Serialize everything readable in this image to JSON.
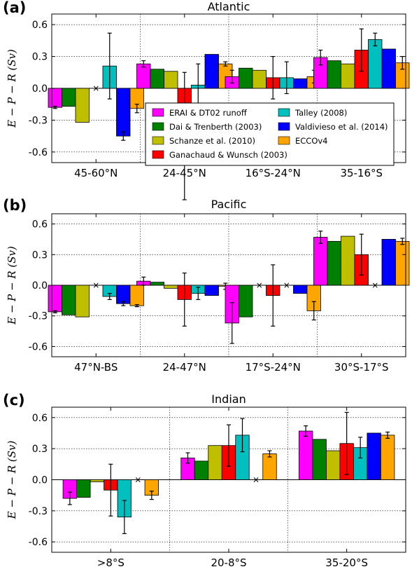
{
  "colors": {
    "ERAI & DT02 runoff": "#ff00ff",
    "Dai & Trenberth (2003)": "#008000",
    "Schanze et al. (2010)": "#bfbf00",
    "Ganachaud & Wunsch (2003)": "#ff0000",
    "Talley (2008)": "#00bfbf",
    "Valdivieso et al. (2014)": "#0000ff",
    "ECCOv4": "#ffa500"
  },
  "legend": {
    "location": "inside panel (a), lower center",
    "columns": [
      [
        "ERAI & DT02 runoff",
        "Dai & Trenberth (2003)",
        "Schanze et al. (2010)",
        "Ganachaud & Wunsch (2003)"
      ],
      [
        "Talley (2008)",
        "Valdivieso et al. (2014)",
        "ECCOv4"
      ]
    ]
  },
  "chart_data": [
    {
      "type": "bar",
      "panel_label": "(a)",
      "title": "Atlantic",
      "ylabel": "E − P − R (Sv)",
      "ylim": [
        -0.7,
        0.7
      ],
      "yticks": [
        "0.6",
        "0.3",
        "0.0",
        "-0.3",
        "-0.6"
      ],
      "grid": true,
      "missing_marker": "×",
      "categories": [
        "45-60°N",
        "24-45°N",
        "16°S-24°N",
        "35-16°S"
      ],
      "series": [
        {
          "name": "ERAI & DT02 runoff",
          "values": [
            -0.18,
            0.23,
            0.11,
            0.29
          ],
          "err": [
            0.01,
            0.03,
            0.06,
            0.07
          ]
        },
        {
          "name": "Dai & Trenberth (2003)",
          "values": [
            -0.17,
            0.18,
            0.19,
            0.26
          ],
          "err": [
            null,
            null,
            null,
            null
          ]
        },
        {
          "name": "Schanze et al. (2010)",
          "values": [
            -0.32,
            0.16,
            0.17,
            0.23
          ],
          "err": [
            null,
            null,
            null,
            null
          ]
        },
        {
          "name": "Ganachaud & Wunsch (2003)",
          "values": [
            null,
            -0.45,
            0.1,
            0.36
          ],
          "err": [
            null,
            0.6,
            0.2,
            0.2
          ]
        },
        {
          "name": "Talley (2008)",
          "values": [
            0.21,
            0.03,
            0.1,
            0.46
          ],
          "err": [
            0.31,
            0.2,
            0.15,
            0.06
          ]
        },
        {
          "name": "Valdivieso et al. (2014)",
          "values": [
            -0.45,
            0.32,
            0.09,
            0.37
          ],
          "err": [
            0.04,
            null,
            null,
            null
          ]
        },
        {
          "name": "ECCOv4",
          "values": [
            -0.19,
            0.23,
            0.11,
            0.24
          ],
          "err": [
            0.04,
            0.02,
            0.06,
            0.06
          ]
        }
      ]
    },
    {
      "type": "bar",
      "panel_label": "(b)",
      "title": "Pacific",
      "ylabel": "E − P − R (Sv)",
      "ylim": [
        -0.7,
        0.7
      ],
      "yticks": [
        "0.6",
        "0.3",
        "0.0",
        "-0.3",
        "-0.6"
      ],
      "grid": true,
      "missing_marker": "×",
      "categories": [
        "47°N-BS",
        "24-47°N",
        "17°S-24°N",
        "30°S-17°S"
      ],
      "series": [
        {
          "name": "ERAI & DT02 runoff",
          "values": [
            -0.26,
            0.04,
            -0.37,
            0.47
          ],
          "err": [
            0.01,
            0.04,
            0.2,
            0.06
          ]
        },
        {
          "name": "Dai & Trenberth (2003)",
          "values": [
            -0.29,
            0.03,
            -0.31,
            0.43
          ],
          "err": [
            null,
            null,
            null,
            null
          ]
        },
        {
          "name": "Schanze et al. (2010)",
          "values": [
            -0.31,
            -0.03,
            null,
            0.48
          ],
          "err": [
            null,
            null,
            null,
            null
          ]
        },
        {
          "name": "Ganachaud & Wunsch (2003)",
          "values": [
            null,
            -0.14,
            -0.1,
            0.3
          ],
          "err": [
            null,
            0.26,
            0.3,
            0.2
          ]
        },
        {
          "name": "Talley (2008)",
          "values": [
            -0.11,
            -0.08,
            null,
            null
          ],
          "err": [
            0.03,
            0.06,
            null,
            null
          ]
        },
        {
          "name": "Valdivieso et al. (2014)",
          "values": [
            -0.18,
            -0.1,
            -0.08,
            0.45
          ],
          "err": [
            0.02,
            null,
            null,
            null
          ]
        },
        {
          "name": "ECCOv4",
          "values": [
            -0.2,
            -0.01,
            -0.25,
            0.43
          ],
          "err": [
            0.01,
            0.03,
            0.09,
            0.03
          ]
        }
      ]
    },
    {
      "type": "bar",
      "panel_label": "(c)",
      "title": "Indian",
      "ylabel": "E − P − R (Sv)",
      "ylim": [
        -0.7,
        0.7
      ],
      "yticks": [
        "0.6",
        "0.3",
        "0.0",
        "-0.3",
        "-0.6"
      ],
      "grid": true,
      "missing_marker": "×",
      "categories": [
        ">8°S",
        "20-8°S",
        "35-20°S"
      ],
      "series": [
        {
          "name": "ERAI & DT02 runoff",
          "values": [
            -0.18,
            0.21,
            0.47
          ],
          "err": [
            0.06,
            0.05,
            0.05
          ]
        },
        {
          "name": "Dai & Trenberth (2003)",
          "values": [
            -0.17,
            0.18,
            0.39
          ],
          "err": [
            null,
            null,
            null
          ]
        },
        {
          "name": "Schanze et al. (2010)",
          "values": [
            -0.02,
            0.33,
            0.28
          ],
          "err": [
            null,
            null,
            null
          ]
        },
        {
          "name": "Ganachaud & Wunsch (2003)",
          "values": [
            -0.1,
            0.33,
            0.35
          ],
          "err": [
            0.25,
            0.2,
            0.3
          ]
        },
        {
          "name": "Talley (2008)",
          "values": [
            -0.36,
            0.43,
            0.31
          ],
          "err": [
            0.16,
            0.16,
            0.1
          ]
        },
        {
          "name": "Valdivieso et al. (2014)",
          "values": [
            null,
            null,
            0.45
          ],
          "err": [
            null,
            null,
            null
          ]
        },
        {
          "name": "ECCOv4",
          "values": [
            -0.15,
            0.25,
            0.43
          ],
          "err": [
            0.04,
            0.03,
            0.03
          ]
        }
      ]
    }
  ]
}
